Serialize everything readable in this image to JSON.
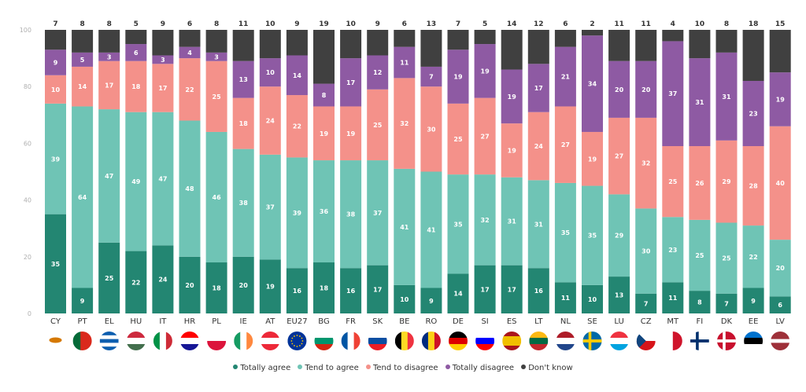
{
  "chart_data": {
    "type": "bar",
    "stacked": true,
    "title": "",
    "xlabel": "",
    "ylabel": "",
    "ylim": [
      0,
      100
    ],
    "yticks": [
      0,
      20,
      40,
      60,
      80,
      100
    ],
    "grid": false,
    "legend_position": "bottom-center",
    "categories": [
      "CY",
      "PT",
      "EL",
      "HU",
      "IT",
      "HR",
      "PL",
      "IE",
      "AT",
      "EU27",
      "BG",
      "FR",
      "SK",
      "BE",
      "RO",
      "DE",
      "SI",
      "ES",
      "LT",
      "NL",
      "SE",
      "LU",
      "CZ",
      "MT",
      "FI",
      "DK",
      "EE",
      "LV"
    ],
    "series": [
      {
        "name": "Totally agree",
        "color": "#238672",
        "values": [
          35,
          9,
          25,
          22,
          24,
          20,
          18,
          20,
          19,
          16,
          18,
          16,
          17,
          10,
          9,
          14,
          17,
          17,
          16,
          11,
          10,
          13,
          7,
          11,
          8,
          7,
          9,
          6
        ]
      },
      {
        "name": "Tend to agree",
        "color": "#6fc4b5",
        "values": [
          39,
          64,
          47,
          49,
          47,
          48,
          46,
          38,
          37,
          39,
          36,
          38,
          37,
          41,
          41,
          35,
          32,
          31,
          31,
          35,
          35,
          29,
          30,
          23,
          25,
          25,
          22,
          20
        ]
      },
      {
        "name": "Tend to disagree",
        "color": "#f4918a",
        "values": [
          10,
          14,
          17,
          18,
          17,
          22,
          25,
          18,
          24,
          22,
          19,
          19,
          25,
          32,
          30,
          25,
          27,
          19,
          24,
          27,
          19,
          27,
          32,
          25,
          26,
          29,
          28,
          40
        ]
      },
      {
        "name": "Totally disagree",
        "color": "#8e5aa3",
        "values": [
          9,
          5,
          3,
          6,
          3,
          4,
          3,
          13,
          10,
          14,
          8,
          17,
          12,
          11,
          7,
          19,
          19,
          19,
          17,
          21,
          34,
          20,
          20,
          37,
          31,
          31,
          23,
          19
        ]
      },
      {
        "name": "Don't know",
        "color": "#404040",
        "values": [
          7,
          8,
          8,
          5,
          9,
          6,
          8,
          11,
          10,
          9,
          19,
          10,
          9,
          6,
          13,
          7,
          5,
          14,
          12,
          6,
          2,
          11,
          11,
          4,
          10,
          8,
          18,
          15
        ]
      }
    ],
    "flags": [
      "cyprus-flag",
      "portugal-flag",
      "greece-flag",
      "hungary-flag",
      "italy-flag",
      "croatia-flag",
      "poland-flag",
      "ireland-flag",
      "austria-flag",
      "eu-flag",
      "bulgaria-flag",
      "france-flag",
      "slovakia-flag",
      "belgium-flag",
      "romania-flag",
      "germany-flag",
      "slovenia-flag",
      "spain-flag",
      "lithuania-flag",
      "netherlands-flag",
      "sweden-flag",
      "luxembourg-flag",
      "czechia-flag",
      "malta-flag",
      "finland-flag",
      "denmark-flag",
      "estonia-flag",
      "latvia-flag"
    ]
  },
  "legend": [
    {
      "label": "Totally agree",
      "color": "#238672"
    },
    {
      "label": "Tend to agree",
      "color": "#6fc4b5"
    },
    {
      "label": "Tend to disagree",
      "color": "#f4918a"
    },
    {
      "label": "Totally disagree",
      "color": "#8e5aa3"
    },
    {
      "label": "Don't know",
      "color": "#404040"
    }
  ]
}
